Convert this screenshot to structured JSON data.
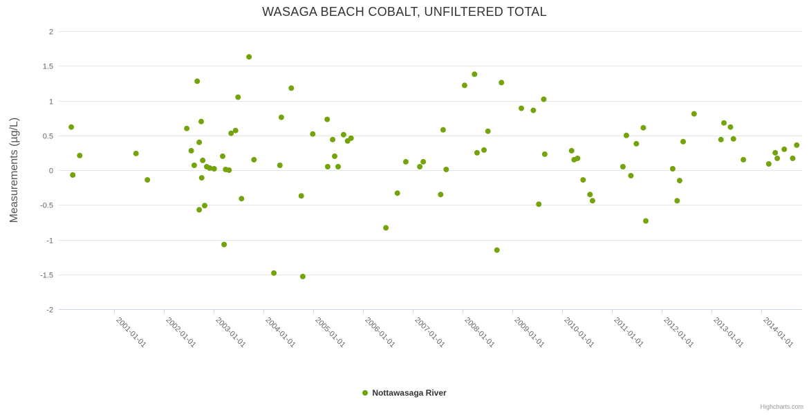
{
  "title": "WASAGA BEACH COBALT, UNFILTERED TOTAL",
  "credits_label": "Highcharts.com",
  "chart_data": {
    "type": "scatter",
    "title": "WASAGA BEACH COBALT, UNFILTERED TOTAL",
    "xlabel": "",
    "ylabel": "Measurements (µg/L)",
    "ylim": [
      -2,
      2
    ],
    "xlim": [
      1999.889,
      2014.819
    ],
    "grid": true,
    "legend_position": "bottom",
    "marker_color": "#74A40B",
    "grid_color": "#e6e6e6",
    "axis_line_color": "#ccd6eb",
    "y_ticks": [
      "2",
      "1.5",
      "1",
      "0.5",
      "0",
      "-0.5",
      "-1",
      "-1.5",
      "-2"
    ],
    "x_tick_values": [
      2001,
      2002,
      2003,
      2004,
      2005,
      2006,
      2007,
      2008,
      2009,
      2010,
      2011,
      2012,
      2013,
      2014
    ],
    "x_tick_labels": [
      "2001-01-01",
      "2002-01-01",
      "2003-01-01",
      "2004-01-01",
      "2005-01-01",
      "2006-01-01",
      "2007-01-01",
      "2008-01-01",
      "2009-01-01",
      "2010-01-01",
      "2011-01-01",
      "2012-01-01",
      "2013-01-01",
      "2014-01-01"
    ],
    "series": [
      {
        "name": "Nottawasaga River",
        "color": "#74A40B",
        "points": [
          [
            2000.14,
            0.62
          ],
          [
            2000.17,
            -0.07
          ],
          [
            2000.31,
            0.21
          ],
          [
            2001.44,
            0.24
          ],
          [
            2001.67,
            -0.14
          ],
          [
            2002.46,
            0.6
          ],
          [
            2002.55,
            0.28
          ],
          [
            2002.61,
            0.07
          ],
          [
            2002.67,
            1.28
          ],
          [
            2002.71,
            0.4
          ],
          [
            2002.71,
            -0.57
          ],
          [
            2002.75,
            0.7
          ],
          [
            2002.76,
            -0.11
          ],
          [
            2002.78,
            0.14
          ],
          [
            2002.82,
            -0.51
          ],
          [
            2002.86,
            0.05
          ],
          [
            2002.92,
            0.03
          ],
          [
            2003.01,
            0.02
          ],
          [
            2003.18,
            0.2
          ],
          [
            2003.21,
            -1.07
          ],
          [
            2003.24,
            0.01
          ],
          [
            2003.31,
            0.0
          ],
          [
            2003.35,
            0.53
          ],
          [
            2003.44,
            0.57
          ],
          [
            2003.49,
            1.05
          ],
          [
            2003.56,
            -0.41
          ],
          [
            2003.71,
            1.63
          ],
          [
            2003.81,
            0.15
          ],
          [
            2004.21,
            -1.48
          ],
          [
            2004.33,
            0.07
          ],
          [
            2004.36,
            0.76
          ],
          [
            2004.56,
            1.18
          ],
          [
            2004.76,
            -0.37
          ],
          [
            2004.79,
            -1.53
          ],
          [
            2004.99,
            0.52
          ],
          [
            2005.28,
            0.73
          ],
          [
            2005.29,
            0.05
          ],
          [
            2005.39,
            0.44
          ],
          [
            2005.43,
            0.2
          ],
          [
            2005.5,
            0.05
          ],
          [
            2005.61,
            0.51
          ],
          [
            2005.69,
            0.42
          ],
          [
            2005.76,
            0.46
          ],
          [
            2006.46,
            -0.83
          ],
          [
            2006.69,
            -0.33
          ],
          [
            2006.86,
            0.12
          ],
          [
            2007.14,
            0.05
          ],
          [
            2007.21,
            0.12
          ],
          [
            2007.56,
            -0.35
          ],
          [
            2007.61,
            0.58
          ],
          [
            2007.67,
            0.01
          ],
          [
            2008.04,
            1.22
          ],
          [
            2008.24,
            1.38
          ],
          [
            2008.29,
            0.25
          ],
          [
            2008.43,
            0.29
          ],
          [
            2008.51,
            0.56
          ],
          [
            2008.69,
            -1.15
          ],
          [
            2008.78,
            1.26
          ],
          [
            2009.18,
            0.89
          ],
          [
            2009.42,
            0.86
          ],
          [
            2009.53,
            -0.49
          ],
          [
            2009.63,
            1.02
          ],
          [
            2009.65,
            0.23
          ],
          [
            2010.19,
            0.28
          ],
          [
            2010.24,
            0.15
          ],
          [
            2010.31,
            0.17
          ],
          [
            2010.42,
            -0.14
          ],
          [
            2010.56,
            -0.35
          ],
          [
            2010.61,
            -0.44
          ],
          [
            2011.22,
            0.05
          ],
          [
            2011.29,
            0.5
          ],
          [
            2011.38,
            -0.08
          ],
          [
            2011.49,
            0.38
          ],
          [
            2011.63,
            0.61
          ],
          [
            2011.68,
            -0.73
          ],
          [
            2012.22,
            0.02
          ],
          [
            2012.31,
            -0.44
          ],
          [
            2012.36,
            -0.15
          ],
          [
            2012.43,
            0.41
          ],
          [
            2012.65,
            0.81
          ],
          [
            2013.19,
            0.44
          ],
          [
            2013.25,
            0.68
          ],
          [
            2013.38,
            0.62
          ],
          [
            2013.44,
            0.45
          ],
          [
            2013.64,
            0.15
          ],
          [
            2014.15,
            0.09
          ],
          [
            2014.28,
            0.25
          ],
          [
            2014.32,
            0.17
          ],
          [
            2014.46,
            0.3
          ],
          [
            2014.63,
            0.17
          ],
          [
            2014.71,
            0.36
          ]
        ]
      }
    ]
  }
}
